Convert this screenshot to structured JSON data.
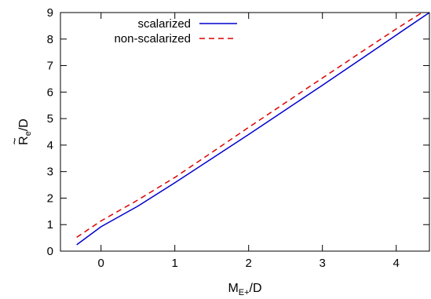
{
  "chart_data": {
    "type": "line",
    "xlabel": "M",
    "xlabel_sub": "E+",
    "xlabel_suffix": "/D",
    "ylabel": "R",
    "ylabel_sub": "e",
    "ylabel_suffix": "/D",
    "ylabel_accent": "~",
    "xlim": [
      -0.55,
      4.45
    ],
    "ylim": [
      0,
      9
    ],
    "xticks": [
      0,
      1,
      2,
      3,
      4
    ],
    "yticks": [
      0,
      1,
      2,
      3,
      4,
      5,
      6,
      7,
      8,
      9
    ],
    "xtick_labels": [
      "0",
      "1",
      "2",
      "3",
      "4"
    ],
    "ytick_labels": [
      "0",
      "1",
      "2",
      "3",
      "4",
      "5",
      "6",
      "7",
      "8",
      "9"
    ],
    "grid": false,
    "legend_position": "top-left",
    "series": [
      {
        "name": "scalarized",
        "color": "#0000cc",
        "dash": "solid",
        "x": [
          -0.33,
          0.0,
          0.5,
          1.0,
          1.5,
          2.0,
          2.5,
          3.0,
          3.5,
          4.0,
          4.45
        ],
        "y": [
          0.24,
          0.92,
          1.7,
          2.58,
          3.49,
          4.4,
          5.33,
          6.26,
          7.2,
          8.15,
          9.0
        ]
      },
      {
        "name": "non-scalarized",
        "color": "#dd0000",
        "dash": "dashed",
        "x": [
          -0.33,
          0.0,
          0.5,
          1.0,
          1.5,
          2.0,
          2.5,
          3.0,
          3.5,
          4.0,
          4.35
        ],
        "y": [
          0.52,
          1.14,
          1.93,
          2.78,
          3.72,
          4.67,
          5.6,
          6.53,
          7.46,
          8.38,
          9.0
        ]
      }
    ]
  }
}
